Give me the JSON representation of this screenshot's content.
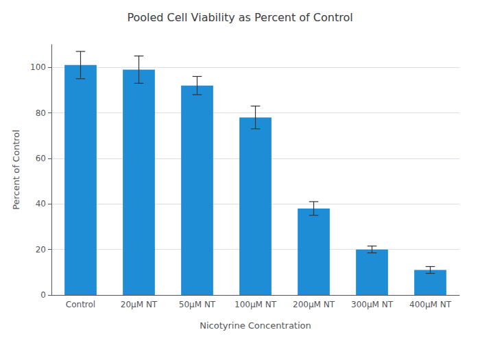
{
  "chart_data": {
    "type": "bar",
    "title": "Pooled Cell Viability as Percent of Control",
    "xlabel": "Nicotyrine Concentration",
    "ylabel": "Percent of Control",
    "categories": [
      "Control",
      "20μM NT",
      "50μM NT",
      "100μM NT",
      "200μM NT",
      "300μM NT",
      "400μM NT"
    ],
    "values": [
      101,
      99,
      92,
      78,
      38,
      20,
      11
    ],
    "errors": [
      6,
      6,
      4,
      5,
      3,
      1.5,
      1.5
    ],
    "color": "#1f8dd6",
    "ylim": [
      0,
      110
    ],
    "yticks": [
      0,
      20,
      40,
      60,
      80,
      100
    ],
    "grid": true
  }
}
